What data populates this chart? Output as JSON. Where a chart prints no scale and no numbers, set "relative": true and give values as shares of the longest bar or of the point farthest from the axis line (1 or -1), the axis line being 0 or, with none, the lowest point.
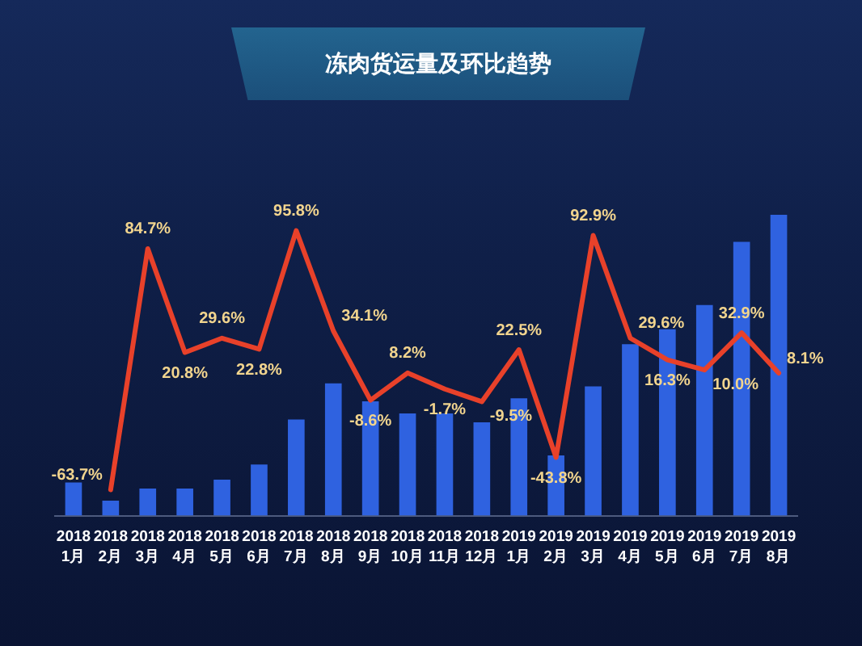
{
  "chart_data": [
    {
      "type": "bar",
      "title": "冻肉货运量及环比趋势",
      "categories": [
        "2018\n1月",
        "2018\n2月",
        "2018\n3月",
        "2018\n4月",
        "2018\n5月",
        "2018\n6月",
        "2018\n7月",
        "2018\n8月",
        "2018\n9月",
        "2018\n10月",
        "2018\n11月",
        "2018\n12月",
        "2019\n1月",
        "2019\n2月",
        "2019\n3月",
        "2019\n4月",
        "2019\n5月",
        "2019\n6月",
        "2019\n7月",
        "2019\n8月"
      ],
      "relative": true,
      "color": "#2f62e0",
      "values": [
        0.11,
        0.05,
        0.09,
        0.09,
        0.12,
        0.17,
        0.32,
        0.44,
        0.38,
        0.34,
        0.34,
        0.31,
        0.39,
        0.2,
        0.43,
        0.57,
        0.62,
        0.7,
        0.91,
        1
      ]
    },
    {
      "type": "line",
      "categories": [
        null,
        null,
        null,
        null,
        null,
        null,
        null,
        null,
        null,
        null,
        null,
        null,
        null,
        null,
        null,
        null,
        null,
        null,
        null,
        null
      ],
      "tick_labels": false,
      "marker": "none",
      "color": "#e8412a",
      "values": [
        null,
        -63.7,
        84.7,
        20.8,
        29.6,
        22.8,
        95.8,
        34.1,
        -8.6,
        8.2,
        -1.7,
        -9.5,
        22.5,
        -43.8,
        92.9,
        29.6,
        16.3,
        10.0,
        32.9,
        8.1
      ],
      "value_labels": [
        null,
        "-63.7%",
        "84.7%",
        "20.8%",
        "29.6%",
        "22.8%",
        "95.8%",
        "34.1%",
        "-8.6%",
        "8.2%",
        "-1.7%",
        "-9.5%",
        "22.5%",
        "-43.8%",
        "92.9%",
        "29.6%",
        "16.3%",
        "10.0%",
        "32.9%",
        "8.1%"
      ]
    }
  ]
}
